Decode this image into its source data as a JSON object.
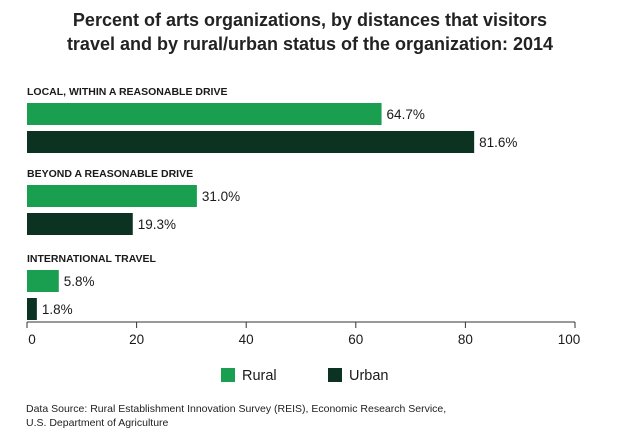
{
  "chart_data": {
    "type": "bar",
    "orientation": "horizontal",
    "title_lines": [
      "Percent of arts organizations, by distances that visitors",
      "travel and by rural/urban status of the organization: 2014"
    ],
    "categories": [
      "LOCAL, WITHIN A REASONABLE DRIVE",
      "BEYOND A REASONABLE DRIVE",
      "INTERNATIONAL TRAVEL"
    ],
    "series": [
      {
        "name": "Rural",
        "color": "#1a9e50",
        "values": [
          64.7,
          31.0,
          5.8
        ],
        "labels": [
          "64.7%",
          "31.0%",
          "5.8%"
        ]
      },
      {
        "name": "Urban",
        "color": "#0c3321",
        "values": [
          81.6,
          19.3,
          1.8
        ],
        "labels": [
          "81.6%",
          "19.3%",
          "1.8%"
        ]
      }
    ],
    "xlim": [
      0,
      100
    ],
    "xticks": [
      "0",
      "20",
      "40",
      "60",
      "80",
      "100"
    ],
    "xtick_values": [
      0,
      20,
      40,
      60,
      80,
      100
    ],
    "grid": false,
    "legend_position": "bottom-center"
  },
  "source_lines": [
    "Data Source: Rural Establishment Innovation Survey (REIS), Economic Research Service,",
    "U.S. Department of Agriculture"
  ]
}
